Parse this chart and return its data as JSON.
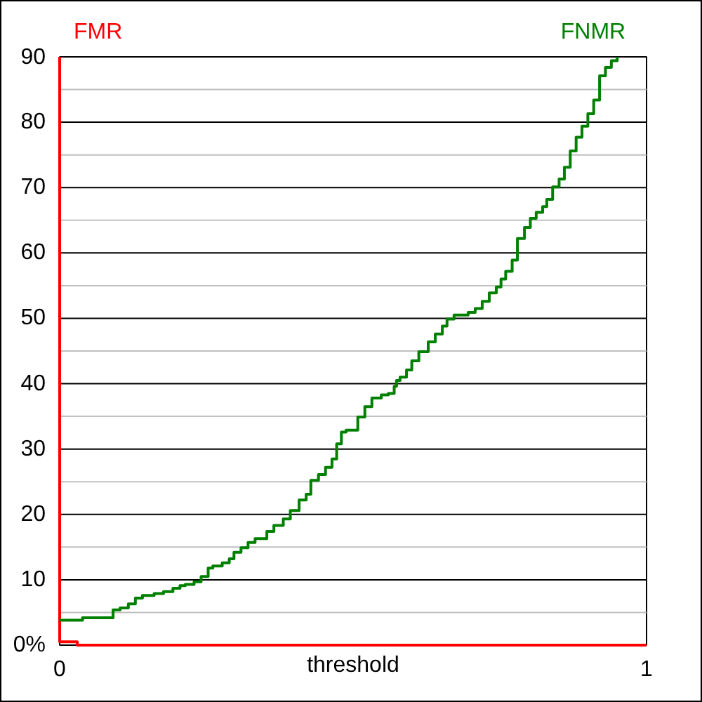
{
  "chart_data": {
    "type": "step",
    "xlabel": "threshold",
    "xlim": [
      0,
      1
    ],
    "xticks": [
      0,
      1
    ],
    "ylim": [
      0,
      90
    ],
    "yticks": [
      {
        "value": 0,
        "label": "0%"
      },
      {
        "value": 5,
        "label": null
      },
      10,
      {
        "value": 15,
        "label": null
      },
      20,
      {
        "value": 25,
        "label": null
      },
      30,
      {
        "value": 35,
        "label": null
      },
      40,
      {
        "value": 45,
        "label": null
      },
      50,
      {
        "value": 55,
        "label": null
      },
      60,
      {
        "value": 65,
        "label": null
      },
      70,
      {
        "value": 75,
        "label": null
      },
      80,
      {
        "value": 85,
        "label": null
      },
      90
    ],
    "grid": "y",
    "series": [
      {
        "name": "FMR",
        "color": "#ff0000",
        "x": [
          0,
          0,
          0.03,
          1
        ],
        "values": [
          90,
          0.5,
          0,
          0
        ]
      },
      {
        "name": "FNMR",
        "color": "#008000",
        "x": [
          0,
          0.039,
          0.091,
          0.103,
          0.117,
          0.129,
          0.141,
          0.161,
          0.177,
          0.193,
          0.205,
          0.214,
          0.229,
          0.241,
          0.253,
          0.261,
          0.277,
          0.289,
          0.297,
          0.309,
          0.321,
          0.333,
          0.353,
          0.365,
          0.381,
          0.393,
          0.408,
          0.42,
          0.428,
          0.441,
          0.453,
          0.464,
          0.472,
          0.48,
          0.488,
          0.508,
          0.52,
          0.532,
          0.548,
          0.56,
          0.57,
          0.574,
          0.58,
          0.591,
          0.6,
          0.612,
          0.628,
          0.64,
          0.652,
          0.66,
          0.672,
          0.696,
          0.708,
          0.72,
          0.732,
          0.744,
          0.752,
          0.76,
          0.771,
          0.78,
          0.792,
          0.802,
          0.812,
          0.823,
          0.83,
          0.84,
          0.851,
          0.86,
          0.87,
          0.88,
          0.89,
          0.9,
          0.91,
          0.92,
          0.93,
          0.94,
          0.95
        ],
        "values": [
          3.8,
          4.2,
          5.4,
          5.7,
          6.3,
          7.2,
          7.6,
          7.9,
          8.2,
          8.7,
          9.1,
          9.3,
          9.7,
          10.5,
          11.8,
          12.1,
          12.6,
          13.2,
          14.2,
          14.9,
          15.7,
          16.3,
          17.4,
          18.3,
          19.3,
          20.6,
          22.2,
          23.1,
          25.2,
          26.1,
          27.2,
          28.5,
          30.8,
          32.6,
          32.9,
          34.9,
          36.5,
          37.8,
          38.3,
          38.5,
          39.6,
          40.5,
          41.0,
          42.1,
          43.5,
          44.9,
          46.4,
          47.6,
          48.8,
          49.9,
          50.5,
          50.9,
          51.5,
          52.6,
          53.9,
          54.8,
          56.0,
          57.2,
          58.9,
          62.2,
          63.9,
          65.3,
          66.2,
          67.1,
          68.2,
          70.1,
          71.3,
          73.1,
          75.6,
          77.7,
          79.4,
          81.3,
          83.4,
          87.1,
          88.4,
          89.4,
          90
        ]
      }
    ]
  }
}
